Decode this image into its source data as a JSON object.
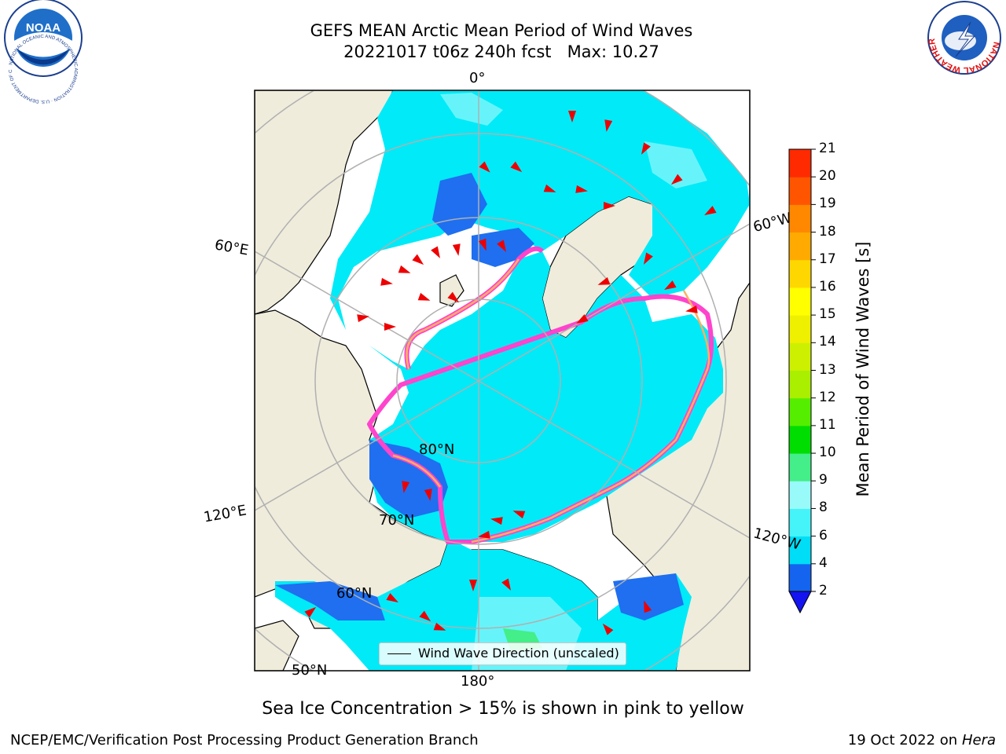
{
  "header": {
    "title_line1": "GEFS MEAN Arctic Mean Period of Wind Waves",
    "title_line2": "20221017 t06z 240h fcst   Max: 10.27"
  },
  "logos": {
    "left": {
      "name": "NOAA",
      "text": "NOAA",
      "ring_text": "NATIONAL OCEANIC AND ATMOSPHERIC ADMINISTRATION · U.S. DEPARTMENT OF COMMERCE"
    },
    "right": {
      "name": "National Weather Service",
      "ring_text": "NATIONAL WEATHER SERVICE"
    }
  },
  "map": {
    "projection": "north polar stereographic",
    "land_color": "#efecdc",
    "ocean_missing_color": "#ffffff",
    "gridline_color": "#b0b0b0",
    "meridian_labels": {
      "top": "0°",
      "upper_right": "60°W",
      "lower_right": "120°W",
      "bottom": "180°",
      "lower_left": "120°E",
      "upper_left": "60°E"
    },
    "parallel_labels": {
      "p80": "80°N",
      "p70": "70°N",
      "p60": "60°N",
      "p50": "50°N"
    },
    "sea_ice_colors": [
      "#ff44cc",
      "#ffb060",
      "#ffe070"
    ],
    "wave_arrow_color": "#ee0000",
    "legend": {
      "label": "Wind Wave Direction (unscaled)"
    }
  },
  "colorbar": {
    "label": "Mean Period of Wind Waves [s]",
    "ticks": [
      "2",
      "4",
      "6",
      "8",
      "9",
      "10",
      "11",
      "12",
      "13",
      "14",
      "15",
      "16",
      "17",
      "18",
      "19",
      "20",
      "21"
    ],
    "colors": [
      "#1464f0",
      "#00ddf6",
      "#44f4f8",
      "#99fafa",
      "#44ee88",
      "#00dd00",
      "#55ee00",
      "#aaee00",
      "#ccf000",
      "#eef000",
      "#ffff00",
      "#ffd700",
      "#ffaa00",
      "#ff8800",
      "#ff5500",
      "#ff2a00"
    ],
    "under_color": "#1414f0"
  },
  "footer": {
    "note": "Sea Ice Concentration > 15% is shown in pink to yellow",
    "credit": "NCEP/EMC/Verification Post Processing Product Generation Branch",
    "date": "19 Oct 2022 on",
    "host": "Hera"
  }
}
